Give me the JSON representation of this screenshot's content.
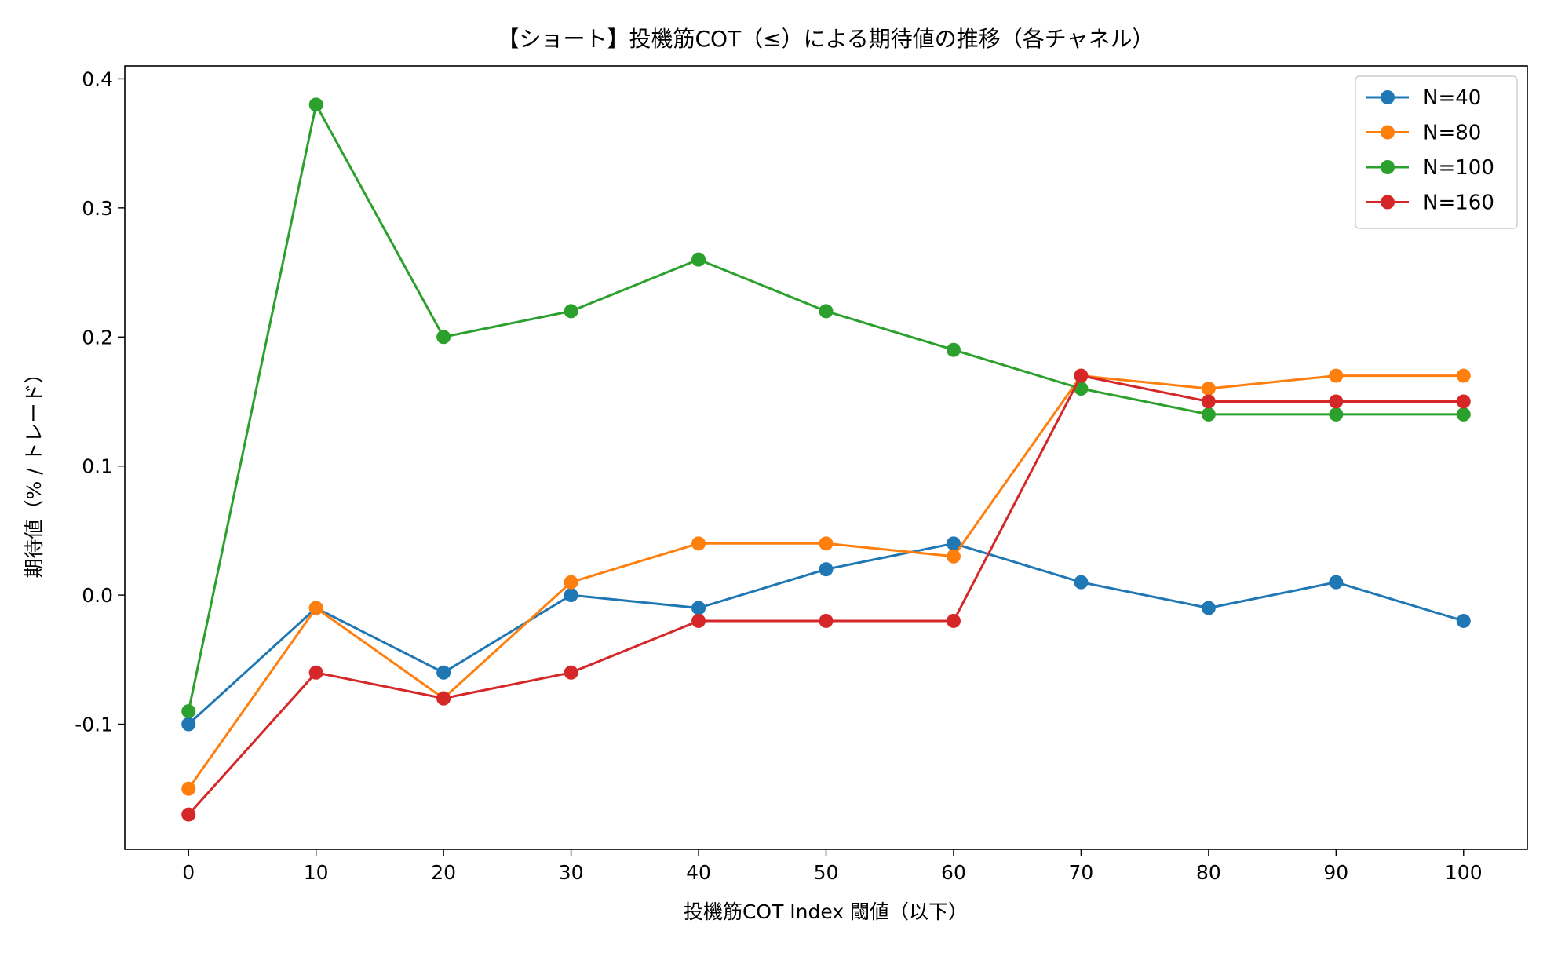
{
  "chart_data": {
    "type": "line",
    "title": "【ショート】投機筋COT（≤）による期待値の推移（各チャネル）",
    "xlabel": "投機筋COT Index 閾値（以下）",
    "ylabel": "期待値（% / トレード）",
    "x": [
      0,
      10,
      20,
      30,
      40,
      50,
      60,
      70,
      80,
      90,
      100
    ],
    "xticks": [
      "0",
      "10",
      "20",
      "30",
      "40",
      "50",
      "60",
      "70",
      "80",
      "90",
      "100"
    ],
    "yticks": [
      "-0.1",
      "0.0",
      "0.1",
      "0.2",
      "0.3",
      "0.4"
    ],
    "ytick_values": [
      -0.1,
      0.0,
      0.1,
      0.2,
      0.3,
      0.4
    ],
    "xlim": [
      -5,
      105
    ],
    "ylim": [
      -0.197,
      0.41
    ],
    "grid": false,
    "legend_position": "top-right",
    "series": [
      {
        "name": "N=40",
        "color": "#1f77b4",
        "values": [
          -0.1,
          -0.01,
          -0.06,
          0.0,
          -0.01,
          0.02,
          0.04,
          0.01,
          -0.01,
          0.01,
          -0.02
        ]
      },
      {
        "name": "N=80",
        "color": "#ff7f0e",
        "values": [
          -0.15,
          -0.01,
          -0.08,
          0.01,
          0.04,
          0.04,
          0.03,
          0.17,
          0.16,
          0.17,
          0.17
        ]
      },
      {
        "name": "N=100",
        "color": "#2ca02c",
        "values": [
          -0.09,
          0.38,
          0.2,
          0.22,
          0.26,
          0.22,
          0.19,
          0.16,
          0.14,
          0.14,
          0.14
        ]
      },
      {
        "name": "N=160",
        "color": "#d62728",
        "values": [
          -0.17,
          -0.06,
          -0.08,
          -0.06,
          -0.02,
          -0.02,
          -0.02,
          0.17,
          0.15,
          0.15,
          0.15
        ]
      }
    ]
  }
}
